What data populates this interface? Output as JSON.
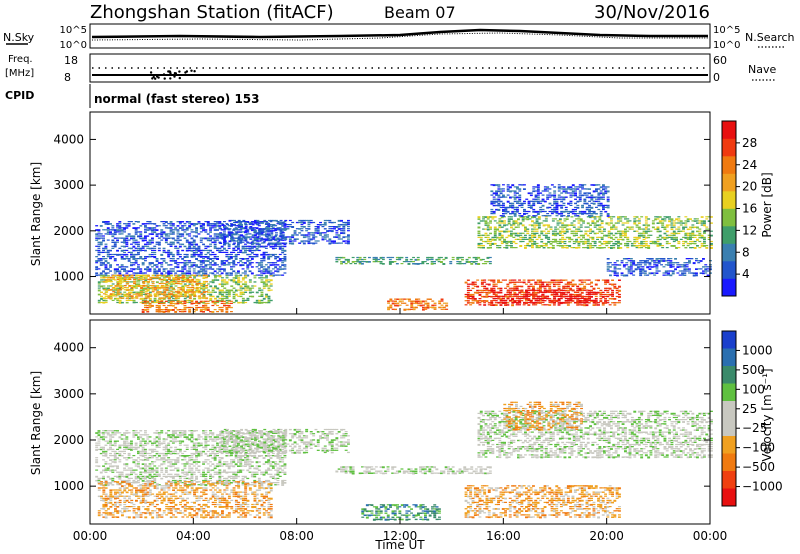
{
  "header": {
    "title": "Zhongshan Station (fitACF)",
    "beam": "Beam 07",
    "date": "30/Nov/2016"
  },
  "strips": {
    "nsky_label": "N.Sky",
    "nsky_ticks": [
      "10^5",
      "10^0"
    ],
    "nsearch_label": "N.Search",
    "freq_label_1": "Freq.",
    "freq_label_2": "[MHz]",
    "freq_ticks": [
      "18",
      "8"
    ],
    "nave_label": "Nave",
    "nave_ticks": [
      "60",
      "0"
    ],
    "cpid_label": "CPID",
    "cpid_value": "normal (fast stereo) 153"
  },
  "chart_data": [
    {
      "type": "heatmap",
      "parameter": "Power",
      "xlabel": "Time UT",
      "ylabel": "Slant Range [km]",
      "x_ticks": [
        "00:00",
        "04:00",
        "08:00",
        "12:00",
        "16:00",
        "20:00",
        "00:00"
      ],
      "y_ticks": [
        "1000",
        "2000",
        "3000",
        "4000"
      ],
      "ylim": [
        180,
        4600
      ],
      "colorbar": {
        "label": "Power [dB]",
        "ticks": [
          "4",
          "8",
          "12",
          "16",
          "20",
          "24",
          "28"
        ],
        "colors": [
          "#1a1aff",
          "#2255cc",
          "#3a7fb0",
          "#3f9e6a",
          "#7fbf3f",
          "#e8d020",
          "#f0a020",
          "#f07a10",
          "#f03a10",
          "#e81010"
        ]
      },
      "echo_regions": [
        {
          "t0": 0.2,
          "t1": 7.5,
          "r0": 1000,
          "r1": 2200,
          "level": 1
        },
        {
          "t0": 0.3,
          "t1": 7.0,
          "r0": 400,
          "r1": 1000,
          "level": 4
        },
        {
          "t0": 0.5,
          "t1": 4.5,
          "r0": 500,
          "r1": 1000,
          "level": 6
        },
        {
          "t0": 2.0,
          "t1": 5.5,
          "r0": 200,
          "r1": 450,
          "level": 7
        },
        {
          "t0": 5.0,
          "t1": 10.0,
          "r0": 1700,
          "r1": 2200,
          "level": 1
        },
        {
          "t0": 9.5,
          "t1": 15.5,
          "r0": 1250,
          "r1": 1400,
          "level": 3
        },
        {
          "t0": 11.5,
          "t1": 13.8,
          "r0": 250,
          "r1": 500,
          "level": 7
        },
        {
          "t0": 14.5,
          "t1": 20.5,
          "r0": 350,
          "r1": 900,
          "level": 8
        },
        {
          "t0": 15.5,
          "t1": 19.5,
          "r0": 400,
          "r1": 700,
          "level": 9
        },
        {
          "t0": 15.0,
          "t1": 24.0,
          "r0": 1600,
          "r1": 2300,
          "level": 4
        },
        {
          "t0": 15.5,
          "t1": 20.0,
          "r0": 2300,
          "r1": 3000,
          "level": 1
        },
        {
          "t0": 20.0,
          "t1": 24.0,
          "r0": 1000,
          "r1": 1400,
          "level": 1
        }
      ]
    },
    {
      "type": "heatmap",
      "parameter": "Velocity",
      "xlabel": "Time UT",
      "ylabel": "Slant Range [km]",
      "x_ticks": [
        "00:00",
        "04:00",
        "08:00",
        "12:00",
        "16:00",
        "20:00",
        "00:00"
      ],
      "y_ticks": [
        "1000",
        "2000",
        "3000",
        "4000"
      ],
      "ylim": [
        180,
        4600
      ],
      "colorbar": {
        "label": "Velocity [m s⁻¹]",
        "ticks": [
          "1000",
          "500",
          "100",
          "25",
          "−25",
          "−100",
          "−500",
          "−1000"
        ],
        "colors": [
          "#1a3fcc",
          "#2a6fb0",
          "#3a8a6a",
          "#5fc040",
          "#c8c8c0",
          "#c8c8c0",
          "#f0a020",
          "#f07a10",
          "#f04010",
          "#e81010"
        ]
      },
      "echo_regions": [
        {
          "t0": 0.2,
          "t1": 7.5,
          "r0": 1000,
          "r1": 2200,
          "level": 4
        },
        {
          "t0": 0.3,
          "t1": 7.0,
          "r0": 300,
          "r1": 1100,
          "level": 6
        },
        {
          "t0": 5.0,
          "t1": 10.0,
          "r0": 1700,
          "r1": 2200,
          "level": 4
        },
        {
          "t0": 9.5,
          "t1": 15.5,
          "r0": 1250,
          "r1": 1400,
          "level": 4
        },
        {
          "t0": 10.5,
          "t1": 13.5,
          "r0": 250,
          "r1": 600,
          "level": 2
        },
        {
          "t0": 14.5,
          "t1": 20.5,
          "r0": 300,
          "r1": 1000,
          "level": 6
        },
        {
          "t0": 15.0,
          "t1": 24.0,
          "r0": 1600,
          "r1": 2600,
          "level": 4
        },
        {
          "t0": 16.0,
          "t1": 19.0,
          "r0": 2200,
          "r1": 2800,
          "level": 6
        }
      ]
    }
  ]
}
